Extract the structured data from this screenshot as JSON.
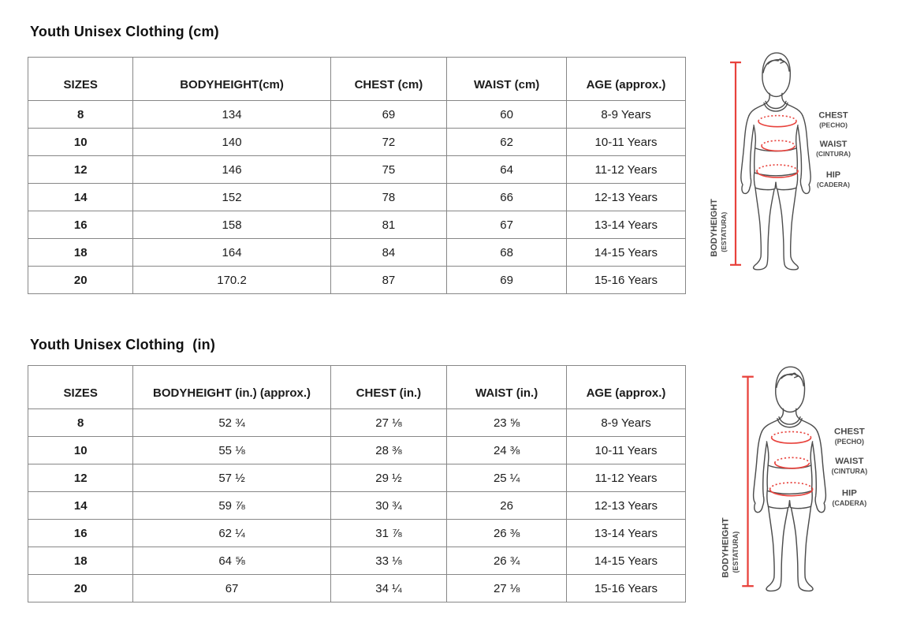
{
  "sections": [
    {
      "title": "Youth Unisex Clothing (cm)",
      "table": {
        "headers": [
          "SIZES",
          "BODYHEIGHT(cm)",
          "CHEST (cm)",
          "WAIST (cm)",
          "AGE (approx.)"
        ],
        "rows": [
          [
            "8",
            "134",
            "69",
            "60",
            "8-9 Years"
          ],
          [
            "10",
            "140",
            "72",
            "62",
            "10-11 Years"
          ],
          [
            "12",
            "146",
            "75",
            "64",
            "11-12 Years"
          ],
          [
            "14",
            "152",
            "78",
            "66",
            "12-13 Years"
          ],
          [
            "16",
            "158",
            "81",
            "67",
            "13-14 Years"
          ],
          [
            "18",
            "164",
            "84",
            "68",
            "14-15 Years"
          ],
          [
            "20",
            "170.2",
            "87",
            "69",
            "15-16 Years"
          ]
        ]
      }
    },
    {
      "title": "Youth Unisex Clothing  (in)",
      "table": {
        "headers": [
          "SIZES",
          "BODYHEIGHT (in.) (approx.)",
          "CHEST (in.)",
          "WAIST (in.)",
          "AGE (approx.)"
        ],
        "rows": [
          [
            "8",
            "52 ¾",
            "27 ⅛",
            "23 ⅝",
            "8-9 Years"
          ],
          [
            "10",
            "55 ⅛",
            "28 ⅜",
            "24 ⅜",
            "10-11 Years"
          ],
          [
            "12",
            "57 ½",
            "29 ½",
            "25 ¼",
            "11-12 Years"
          ],
          [
            "14",
            "59 ⅞",
            "30 ¾",
            "26",
            "12-13 Years"
          ],
          [
            "16",
            "62 ¼",
            "31 ⅞",
            "26 ⅜",
            "13-14 Years"
          ],
          [
            "18",
            "64 ⅝",
            "33 ⅛",
            "26 ¾",
            "14-15 Years"
          ],
          [
            "20",
            "67",
            "34 ¼",
            "27 ⅛",
            "15-16 Years"
          ]
        ]
      }
    }
  ],
  "diagram": {
    "labels": {
      "chest": "CHEST",
      "chest_sub": "(PECHO)",
      "waist": "WAIST",
      "waist_sub": "(CINTURA)",
      "hip": "HIP",
      "hip_sub": "(CADERA)",
      "bodyheight": "BODYHEIGHT",
      "bodyheight_sub": "(ESTATURA)"
    },
    "colors": {
      "measure_red": "#e8423c",
      "body_outline": "#4d4d4d",
      "label_gray": "#4a4a4a"
    }
  }
}
